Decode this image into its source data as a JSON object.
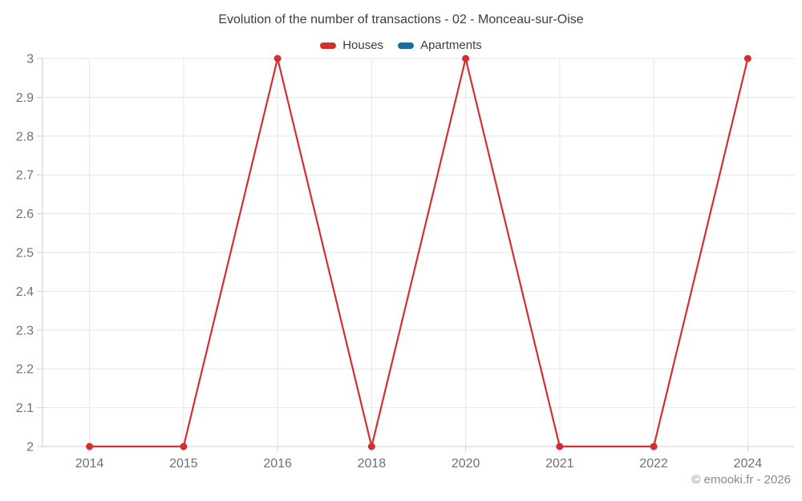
{
  "header": {
    "title": "Evolution of the number of transactions - 02 - Monceau-sur-Oise"
  },
  "legend": {
    "items": [
      {
        "label": "Houses",
        "color": "#d32f2f"
      },
      {
        "label": "Apartments",
        "color": "#1b6e9e"
      }
    ]
  },
  "watermark": "© emooki.fr - 2026",
  "colors": {
    "houses_red": "#d32f2f",
    "apartments_blue": "#1b6e9e",
    "grid": "#e6e6e6",
    "axis_line": "#cccccc",
    "axis_text": "#707070",
    "title_text": "#3d3d3d",
    "watermark_text": "#8a8a8a"
  },
  "chart_data": {
    "type": "line",
    "title": "Evolution of the number of transactions - 02 - Monceau-sur-Oise",
    "xlabel": "",
    "ylabel": "",
    "categories": [
      "2014",
      "2015",
      "2016",
      "2018",
      "2020",
      "2021",
      "2022",
      "2024"
    ],
    "ylim": [
      2,
      3
    ],
    "y_ticks": [
      {
        "value": 2.0,
        "label": "2"
      },
      {
        "value": 2.1,
        "label": "2.1"
      },
      {
        "value": 2.2,
        "label": "2.2"
      },
      {
        "value": 2.3,
        "label": "2.3"
      },
      {
        "value": 2.4,
        "label": "2.4"
      },
      {
        "value": 2.5,
        "label": "2.5"
      },
      {
        "value": 2.6,
        "label": "2.6"
      },
      {
        "value": 2.7,
        "label": "2.7"
      },
      {
        "value": 2.8,
        "label": "2.8"
      },
      {
        "value": 2.9,
        "label": "2.9"
      },
      {
        "value": 3.0,
        "label": "3"
      }
    ],
    "grid": true,
    "legend_position": "top",
    "series": [
      {
        "name": "Houses",
        "color": "#d32f2f",
        "values": [
          2,
          2,
          3,
          2,
          3,
          2,
          2,
          3
        ]
      },
      {
        "name": "Apartments",
        "color": "#1b6e9e",
        "values": []
      }
    ]
  }
}
